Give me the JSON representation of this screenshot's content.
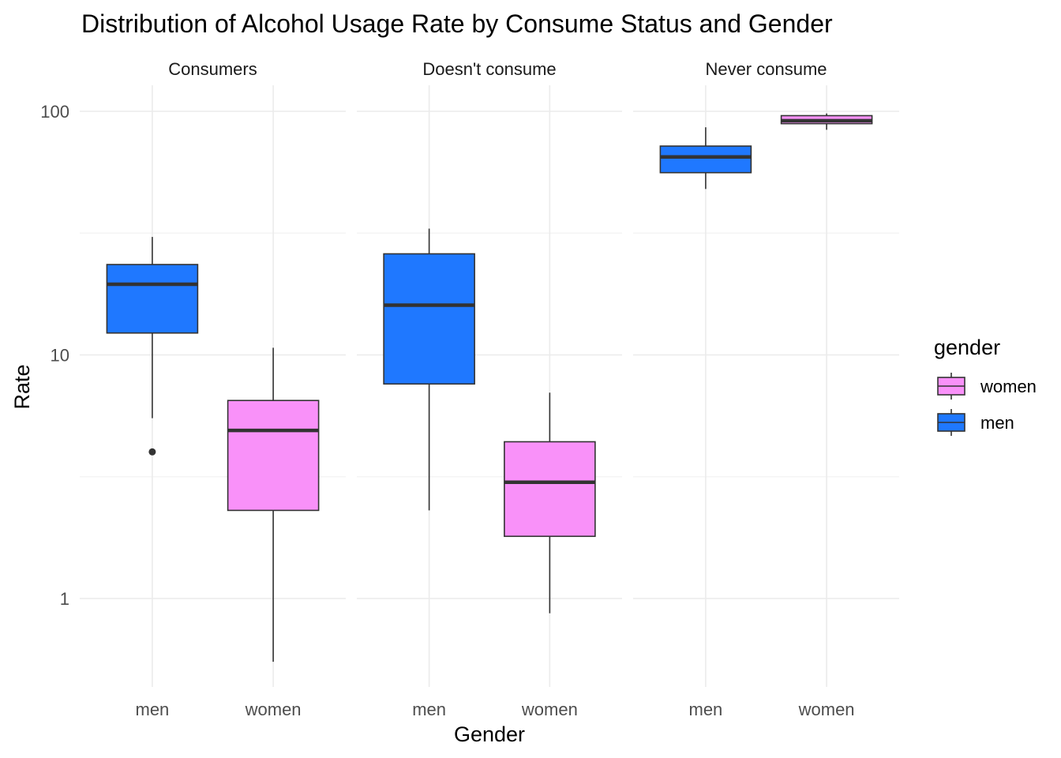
{
  "chart_data": {
    "type": "box",
    "title": "Distribution of Alcohol Usage Rate by Consume Status and Gender",
    "xlabel": "Gender",
    "ylabel": "Rate",
    "y_scale": "log10",
    "ylim": [
      0.45,
      130
    ],
    "y_ticks": [
      1,
      10,
      100
    ],
    "y_tick_labels": [
      "1",
      "10",
      "100"
    ],
    "grid": true,
    "legend": {
      "title": "gender",
      "position": "right",
      "entries": [
        {
          "label": "women",
          "color": "#F991F9"
        },
        {
          "label": "men",
          "color": "#1F78FF"
        }
      ]
    },
    "categories": [
      "men",
      "women"
    ],
    "panels": [
      {
        "label": "Consumers",
        "boxes": [
          {
            "category": "men",
            "color": "#1F78FF",
            "whisker_low": 5.5,
            "q1": 12.3,
            "median": 19.5,
            "q3": 23.5,
            "whisker_high": 30.5,
            "outliers": [
              4.0
            ]
          },
          {
            "category": "women",
            "color": "#F991F9",
            "whisker_low": 0.55,
            "q1": 2.3,
            "median": 4.9,
            "q3": 6.5,
            "whisker_high": 10.7,
            "outliers": []
          }
        ]
      },
      {
        "label": "Doesn't consume",
        "boxes": [
          {
            "category": "men",
            "color": "#1F78FF",
            "whisker_low": 2.3,
            "q1": 7.6,
            "median": 16.0,
            "q3": 26.0,
            "whisker_high": 33.0,
            "outliers": []
          },
          {
            "category": "women",
            "color": "#F991F9",
            "whisker_low": 0.87,
            "q1": 1.8,
            "median": 3.0,
            "q3": 4.4,
            "whisker_high": 7.0,
            "outliers": []
          }
        ]
      },
      {
        "label": "Never consume",
        "boxes": [
          {
            "category": "men",
            "color": "#1F78FF",
            "whisker_low": 48.0,
            "q1": 56.0,
            "median": 65.0,
            "q3": 72.0,
            "whisker_high": 86.0,
            "outliers": []
          },
          {
            "category": "women",
            "color": "#F991F9",
            "whisker_low": 84.0,
            "q1": 89.0,
            "median": 91.5,
            "q3": 96.0,
            "whisker_high": 98.0,
            "outliers": []
          }
        ]
      }
    ]
  }
}
